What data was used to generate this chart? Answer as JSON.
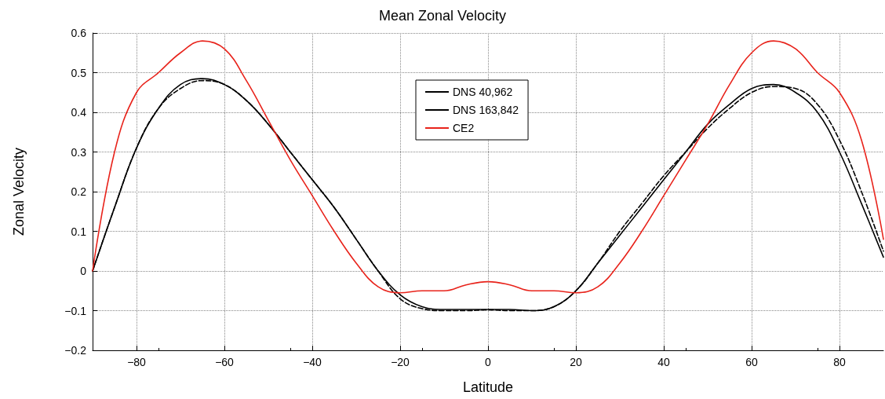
{
  "chart_data": {
    "type": "line",
    "title": "Mean Zonal Velocity",
    "xlabel": "Latitude",
    "ylabel": "Zonal Velocity",
    "x": [
      -90,
      -85,
      -80,
      -75,
      -70,
      -65,
      -60,
      -55,
      -50,
      -45,
      -40,
      -35,
      -30,
      -25,
      -20,
      -15,
      -10,
      -5,
      0,
      5,
      10,
      15,
      20,
      25,
      30,
      35,
      40,
      45,
      50,
      55,
      60,
      65,
      70,
      75,
      80,
      85,
      90
    ],
    "series": [
      {
        "name": "DNS 40,962",
        "color": "#000000",
        "line_style": "dashed",
        "values": [
          0,
          0.16,
          0.31,
          0.41,
          0.46,
          0.48,
          0.47,
          0.43,
          0.37,
          0.3,
          0.23,
          0.16,
          0.08,
          0,
          -0.07,
          -0.095,
          -0.1,
          -0.1,
          -0.098,
          -0.1,
          -0.1,
          -0.09,
          -0.05,
          0.02,
          0.1,
          0.17,
          0.24,
          0.3,
          0.36,
          0.41,
          0.45,
          0.465,
          0.46,
          0.42,
          0.33,
          0.2,
          0.05
        ]
      },
      {
        "name": "DNS 163,842",
        "color": "#000000",
        "line_style": "solid",
        "values": [
          0,
          0.16,
          0.31,
          0.41,
          0.47,
          0.485,
          0.47,
          0.43,
          0.37,
          0.3,
          0.23,
          0.16,
          0.08,
          0,
          -0.06,
          -0.09,
          -0.097,
          -0.097,
          -0.097,
          -0.097,
          -0.1,
          -0.09,
          -0.05,
          0.02,
          0.09,
          0.16,
          0.23,
          0.3,
          0.37,
          0.42,
          0.46,
          0.47,
          0.45,
          0.4,
          0.3,
          0.17,
          0.035
        ]
      },
      {
        "name": "CE2",
        "color": "#e8231b",
        "line_style": "solid",
        "values": [
          0,
          0.3,
          0.45,
          0.5,
          0.55,
          0.58,
          0.56,
          0.48,
          0.38,
          0.28,
          0.19,
          0.1,
          0.02,
          -0.04,
          -0.055,
          -0.05,
          -0.05,
          -0.035,
          -0.027,
          -0.035,
          -0.05,
          -0.05,
          -0.055,
          -0.04,
          0.02,
          0.1,
          0.19,
          0.28,
          0.37,
          0.47,
          0.55,
          0.58,
          0.56,
          0.5,
          0.45,
          0.33,
          0.08
        ]
      }
    ],
    "xlim": [
      -90,
      90
    ],
    "xticks": [
      {
        "value": -80,
        "label": "−80"
      },
      {
        "value": -60,
        "label": "−60"
      },
      {
        "value": -40,
        "label": "−40"
      },
      {
        "value": -20,
        "label": "−20"
      },
      0,
      20,
      40,
      60,
      80
    ],
    "ylim": [
      -0.2,
      0.6
    ],
    "yticks": [
      {
        "value": -0.2,
        "label": "−0.2"
      },
      {
        "value": -0.1,
        "label": "−0.1"
      },
      0,
      0.1,
      0.2,
      0.3,
      0.4,
      0.5,
      0.6
    ],
    "grid": true,
    "legend": "top",
    "marker": "none"
  }
}
